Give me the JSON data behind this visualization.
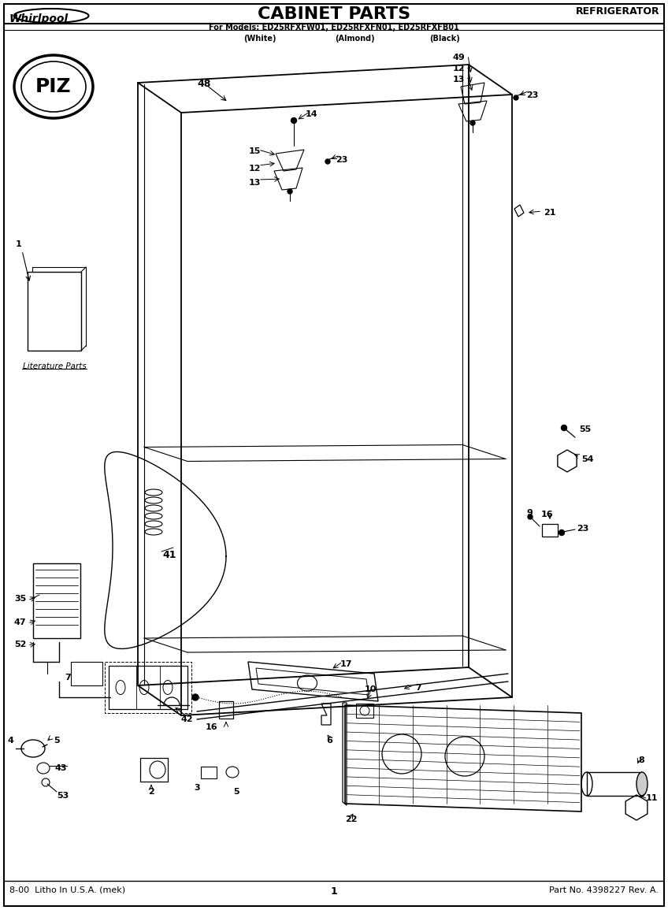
{
  "title": "CABINET PARTS",
  "subtitle1": "For Models: ED25RFXFW01, ED25RFXFN01, ED25RFXFB01",
  "subtitle2_white": "(White)",
  "subtitle2_almond": "(Almond)",
  "subtitle2_black": "(Black)",
  "top_right_label": "REFRIGERATOR",
  "brand": "Whirlpool",
  "footer_left": "8-00  Litho In U.S.A. (mek)",
  "footer_center": "1",
  "footer_right": "Part No. 4398227 Rev. A.",
  "bg_color": "#ffffff",
  "line_color": "#000000",
  "fig_w": 8.48,
  "fig_h": 11.55,
  "dpi": 100
}
